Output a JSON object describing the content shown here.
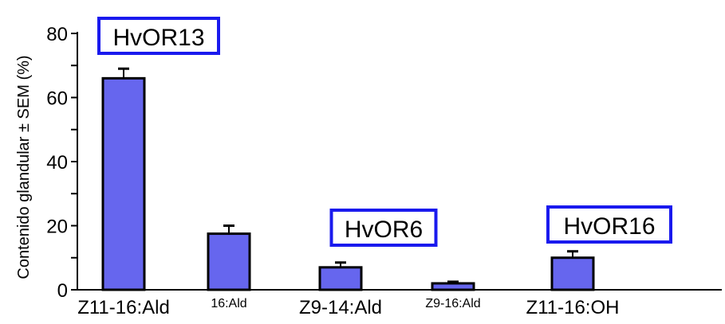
{
  "chart_data": {
    "type": "bar",
    "ylabel": "Contenido glandular  ± SEM (%)",
    "xlabel": "",
    "title": "",
    "ylim": [
      0,
      80
    ],
    "yticks": [
      0,
      20,
      40,
      60,
      80
    ],
    "categories": [
      "Z11-16:Ald",
      "16:Ald",
      "Z9-14:Ald",
      "Z9-16:Ald",
      "Z11-16:OH"
    ],
    "values": [
      66,
      17.5,
      7,
      2,
      10
    ],
    "errors": [
      3,
      2.5,
      1.5,
      0.5,
      2
    ],
    "bar_color": "#6666ee",
    "annotations": [
      {
        "text": "HvOR13",
        "category": "Z11-16:Ald"
      },
      {
        "text": "HvOR6",
        "category": "Z9-14:Ald"
      },
      {
        "text": "HvOR16",
        "category": "Z11-16:OH"
      }
    ],
    "annotation_border_color": "#1a1aee",
    "grid": false
  }
}
